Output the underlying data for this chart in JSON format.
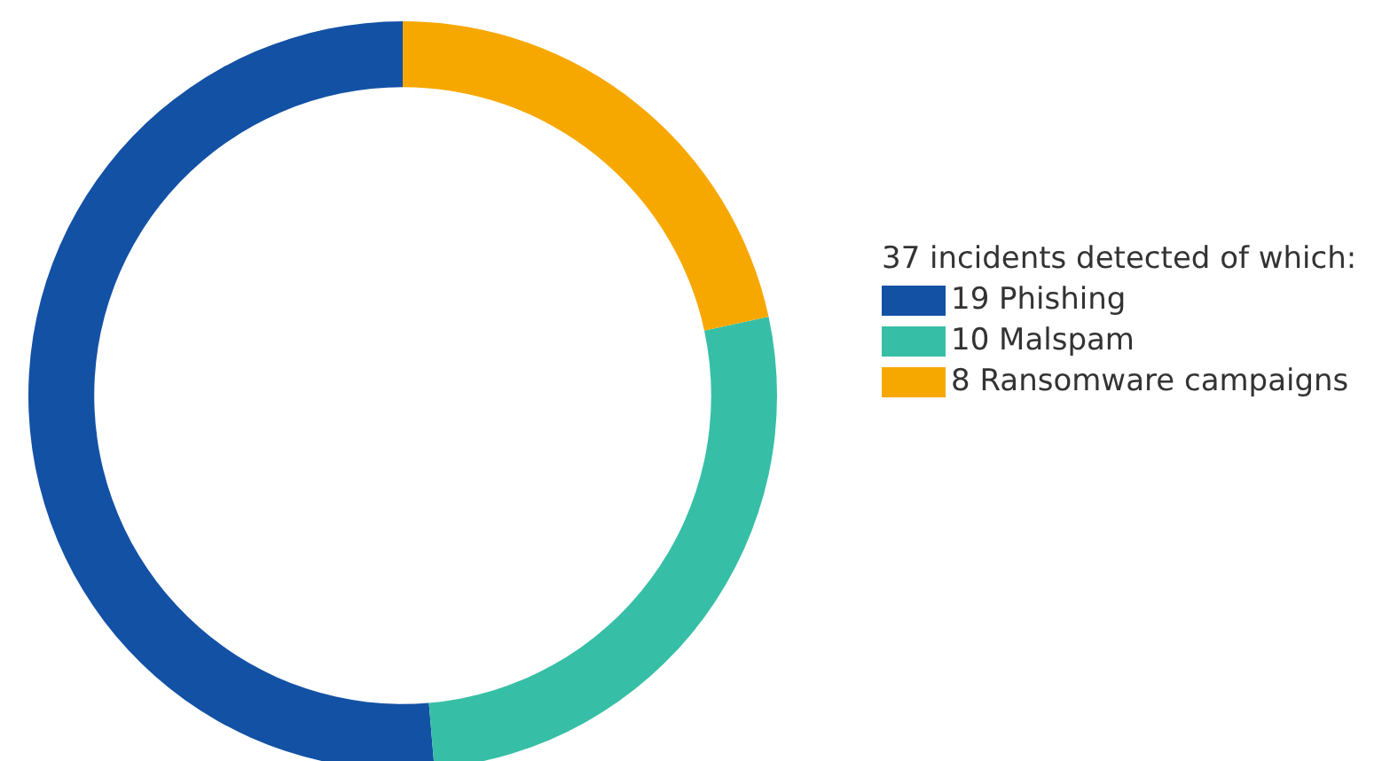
{
  "chart_data": {
    "type": "donut",
    "legend_title": "37 incidents detected of which:",
    "categories": [
      "19 Phishing",
      "10 Malspam",
      "8 Ransomware campaigns"
    ],
    "values": [
      19,
      10,
      8
    ],
    "colors": [
      "#1351a5",
      "#36bfa6",
      "#f7a800"
    ],
    "legend": "right"
  }
}
